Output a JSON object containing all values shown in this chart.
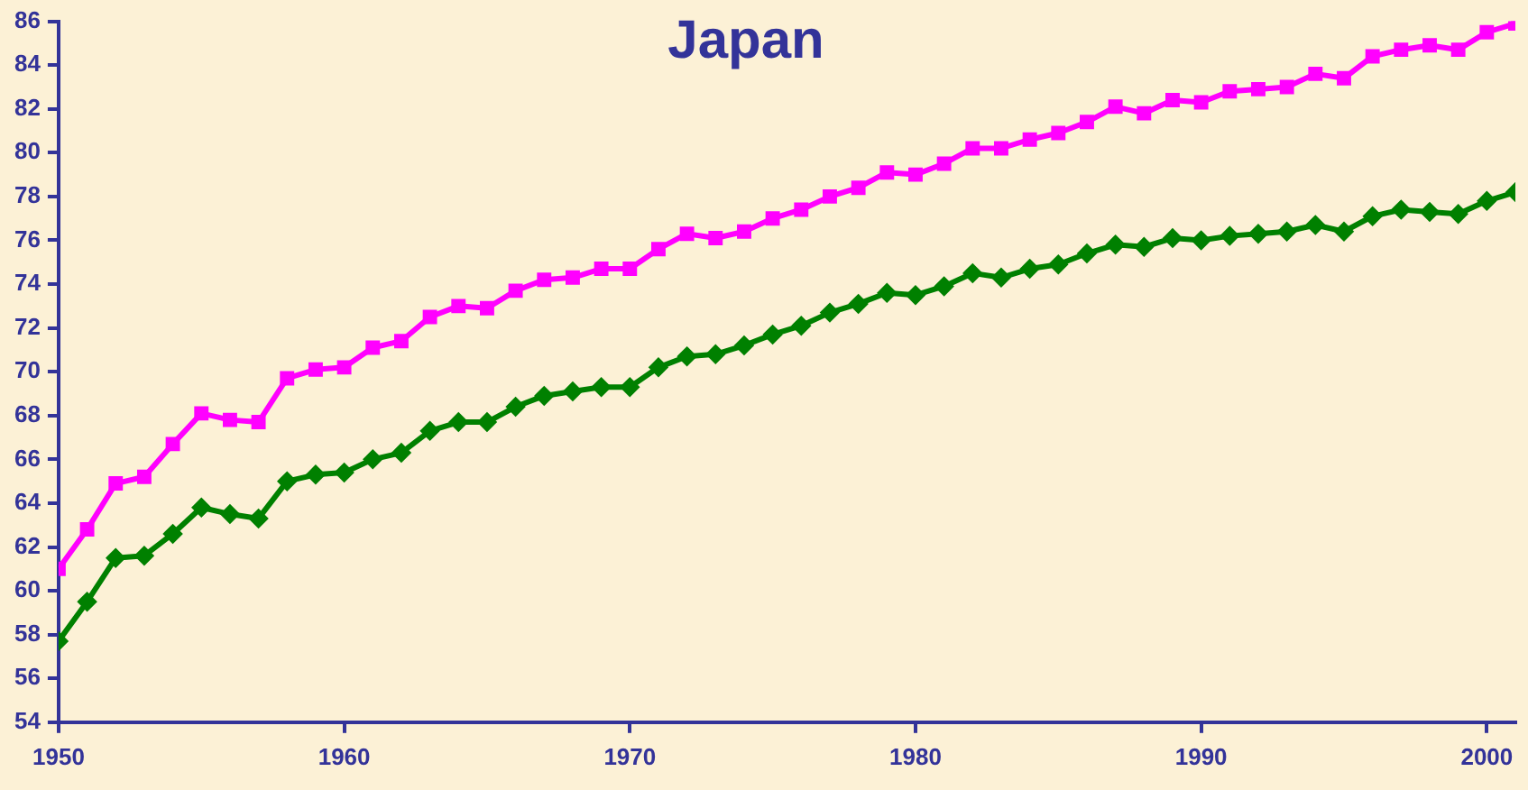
{
  "chart_data": {
    "type": "line",
    "title": "Japan",
    "x": [
      1950,
      1951,
      1952,
      1953,
      1954,
      1955,
      1956,
      1957,
      1958,
      1959,
      1960,
      1961,
      1962,
      1963,
      1964,
      1965,
      1966,
      1967,
      1968,
      1969,
      1970,
      1971,
      1972,
      1973,
      1974,
      1975,
      1976,
      1977,
      1978,
      1979,
      1980,
      1981,
      1982,
      1983,
      1984,
      1985,
      1986,
      1987,
      1988,
      1989,
      1990,
      1991,
      1992,
      1993,
      1994,
      1995,
      1996,
      1997,
      1998,
      1999,
      2000,
      2001
    ],
    "series": [
      {
        "color": "#ff00ff",
        "marker": "square",
        "values": [
          61.0,
          62.8,
          64.9,
          65.2,
          66.7,
          68.1,
          67.8,
          67.7,
          69.7,
          70.1,
          70.2,
          71.1,
          71.4,
          72.5,
          73.0,
          72.9,
          73.7,
          74.2,
          74.3,
          74.7,
          74.7,
          75.6,
          76.3,
          76.1,
          76.4,
          77.0,
          77.4,
          78.0,
          78.4,
          79.1,
          79.0,
          79.5,
          80.2,
          80.2,
          80.6,
          80.9,
          81.4,
          82.1,
          81.8,
          82.4,
          82.3,
          82.8,
          82.9,
          83.0,
          83.6,
          83.4,
          84.4,
          84.7,
          84.9,
          84.7,
          85.5,
          85.9
        ]
      },
      {
        "color": "#008000",
        "marker": "diamond",
        "values": [
          57.7,
          59.5,
          61.5,
          61.6,
          62.6,
          63.8,
          63.5,
          63.3,
          65.0,
          65.3,
          65.4,
          66.0,
          66.3,
          67.3,
          67.7,
          67.7,
          68.4,
          68.9,
          69.1,
          69.3,
          69.3,
          70.2,
          70.7,
          70.8,
          71.2,
          71.7,
          72.1,
          72.7,
          73.1,
          73.6,
          73.5,
          73.9,
          74.5,
          74.3,
          74.7,
          74.9,
          75.4,
          75.8,
          75.7,
          76.1,
          76.0,
          76.2,
          76.3,
          76.4,
          76.7,
          76.4,
          77.1,
          77.4,
          77.3,
          77.2,
          77.8,
          78.2
        ]
      }
    ],
    "xlim": [
      1950,
      2001
    ],
    "xticks": [
      1950,
      1960,
      1970,
      1980,
      1990,
      2000
    ],
    "ylim": [
      54,
      86
    ],
    "yticks": [
      54,
      56,
      58,
      60,
      62,
      64,
      66,
      68,
      70,
      72,
      74,
      76,
      78,
      80,
      82,
      84,
      86
    ],
    "grid": false,
    "legend": false,
    "line_style": "solid"
  }
}
